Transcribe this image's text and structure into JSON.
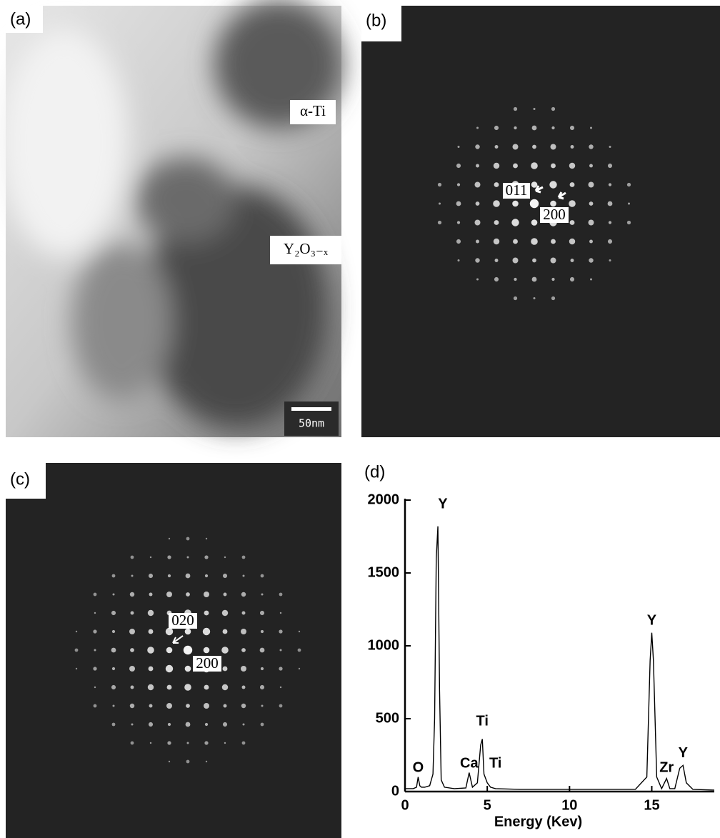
{
  "panels": {
    "a": {
      "label": "(a)",
      "annotations": [
        "α-Ti",
        "Y₂O₃₋ₓ"
      ],
      "scale_bar": "50nm"
    },
    "b": {
      "label": "(b)",
      "annotations": [
        "011",
        "200"
      ]
    },
    "c": {
      "label": "(c)",
      "annotations": [
        "020",
        "200"
      ]
    },
    "d": {
      "label": "(d)"
    }
  },
  "chart_data": {
    "type": "line",
    "x_label": "Energy (Kev)",
    "x": [
      0,
      0.5,
      0.7,
      0.8,
      0.9,
      1.0,
      1.2,
      1.5,
      1.7,
      1.8,
      1.9,
      2.0,
      2.1,
      2.2,
      2.4,
      3,
      3.7,
      3.9,
      4.1,
      4.4,
      4.6,
      4.7,
      4.8,
      5.0,
      5.2,
      5.5,
      7,
      10,
      12,
      14,
      14.7,
      14.9,
      15.0,
      15.1,
      15.3,
      15.6,
      15.9,
      16.1,
      16.4,
      16.7,
      16.9,
      17.1,
      17.5,
      18.8
    ],
    "values": [
      20,
      20,
      30,
      100,
      40,
      30,
      30,
      40,
      120,
      500,
      1600,
      1820,
      700,
      80,
      30,
      20,
      25,
      130,
      30,
      60,
      320,
      360,
      120,
      60,
      30,
      20,
      15,
      15,
      15,
      15,
      100,
      900,
      1090,
      900,
      100,
      20,
      90,
      20,
      20,
      160,
      180,
      60,
      15,
      10
    ],
    "color": "#000000",
    "xlim": [
      0,
      18.8
    ],
    "ylim": [
      0,
      2000
    ],
    "xticks": [
      0,
      5,
      10,
      15
    ],
    "yticks": [
      0,
      500,
      1000,
      1500,
      2000
    ],
    "annotations": [
      {
        "text": "O",
        "x": 0.8,
        "y": 160
      },
      {
        "text": "Y",
        "x": 2.3,
        "y": 1970
      },
      {
        "text": "Ca",
        "x": 3.9,
        "y": 190
      },
      {
        "text": "Ti",
        "x": 4.7,
        "y": 480
      },
      {
        "text": "Ti",
        "x": 5.5,
        "y": 190
      },
      {
        "text": "Y",
        "x": 15.0,
        "y": 1170
      },
      {
        "text": "Zr",
        "x": 15.9,
        "y": 160
      },
      {
        "text": "Y",
        "x": 16.9,
        "y": 260
      }
    ]
  }
}
